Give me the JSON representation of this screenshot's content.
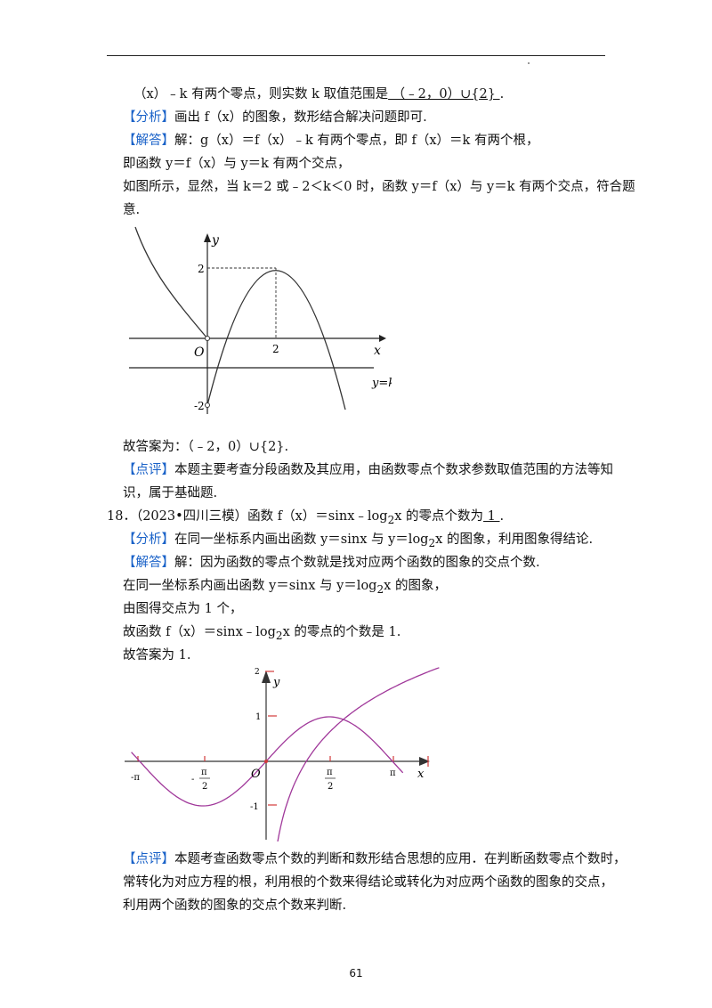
{
  "lines": {
    "l1": "（x）﹣k 有两个零点，则实数 k 取值范围是",
    "l1_blank": "  （﹣2，0）∪{2}  ",
    "l1_end": ".",
    "l2_tag": "【分析】",
    "l2": "画出 f（x）的图象，数形结合解决问题即可.",
    "l3_tag": "【解答】",
    "l3": "解：g（x）＝f（x）﹣k 有两个零点，即 f（x）＝k 有两个根，",
    "l4": "即函数 y＝f（x）与 y＝k 有两个交点，",
    "l5": "如图所示，显然，当 k＝2 或﹣2＜k＜0 时，函数 y＝f（x）与 y＝k 有两个交点，符合题",
    "l6": "意.",
    "l7": "故答案为：（﹣2，0）∪{2}.",
    "l8_tag": "【点评】",
    "l8": "本题主要考查分段函数及其应用，由函数零点个数求参数取值范围的方法等知",
    "l9": "识，属于基础题.",
    "l10_pre": "18．（2023•四川三模）函数 f（x）＝sinx﹣log",
    "l10_sub": "2",
    "l10_mid": "x 的零点个数为",
    "l10_blank": "  1  ",
    "l10_end": ".",
    "l11_tag": "【分析】",
    "l11_pre": "在同一坐标系内画出函数 y＝sinx 与 y＝log",
    "l11_sub": "2",
    "l11_end": "x 的图象，利用图象得结论.",
    "l12_tag": "【解答】",
    "l12": "解：因为函数的零点个数就是找对应两个函数的图象的交点个数.",
    "l13_pre": "在同一坐标系内画出函数 y＝sinx 与 y＝log",
    "l13_sub": "2",
    "l13_end": "x 的图象，",
    "l14": "由图得交点为 1 个，",
    "l15_pre": "故函数 f（x）＝sinx﹣log",
    "l15_sub": "2",
    "l15_end": "x 的零点的个数是 1.",
    "l16": "故答案为 1.",
    "l17_tag": "【点评】",
    "l17": "本题考查函数零点个数的判断和数形结合思想的应用．在判断函数零点个数时，",
    "l18": "常转化为对应方程的根，利用根的个数来得结论或转化为对应两个函数的图象的交点，",
    "l19": "利用两个函数的图象的交点个数来判断."
  },
  "figure1": {
    "y_label": "y",
    "x_label": "x",
    "origin": "O",
    "tick_y2": "2",
    "tick_x2": "2",
    "tick_ym2": "-2",
    "line_label": "y=k"
  },
  "figure2": {
    "y_label": "y",
    "x_label": "x",
    "origin": "O",
    "tick_y1": "1",
    "tick_ym1": "-1",
    "tick_top": "2",
    "tick_mpi": "-π",
    "tick_mhalf_pi": "π",
    "tick_mhalf_2": "2",
    "tick_mhalf_minus": "-",
    "tick_half_pi": "π",
    "tick_half_2": "2",
    "tick_pi": "π"
  },
  "colors": {
    "tag": "#1a62c8",
    "curve": "#a0389a",
    "axis_red": "#d23a3a"
  },
  "page_number": "61"
}
